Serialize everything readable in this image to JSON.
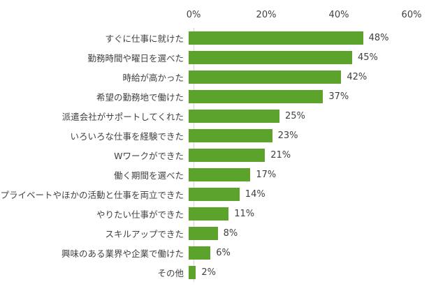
{
  "chart_data": {
    "type": "bar",
    "orientation": "horizontal",
    "title": "",
    "categories": [
      "すぐに仕事に就けた",
      "勤務時間や曜日を選べた",
      "時給が高かった",
      "希望の勤務地で働けた",
      "派遣会社がサポートしてくれた",
      "いろいろな仕事を経験できた",
      "Wワークができた",
      "働く期間を選べた",
      "プライベートやほかの活動と仕事を両立できた",
      "やりたい仕事ができた",
      "スキルアップできた",
      "興味のある業界や企業で働けた",
      "その他"
    ],
    "values": [
      48,
      45,
      42,
      37,
      25,
      23,
      21,
      17,
      14,
      11,
      8,
      6,
      2
    ],
    "value_labels": [
      "48%",
      "45%",
      "42%",
      "37%",
      "25%",
      "23%",
      "21%",
      "17%",
      "14%",
      "11%",
      "8%",
      "6%",
      "2%"
    ],
    "x_axis": {
      "position": "top",
      "ticks": [
        "0%",
        "20%",
        "40%",
        "60%"
      ],
      "tick_values": [
        0,
        20,
        40,
        60
      ],
      "max": 60
    },
    "bar_color": "#5ba32a",
    "axis_line_color": "#d9d9d9",
    "text_color": "#404040",
    "grid": false,
    "legend": "none"
  }
}
